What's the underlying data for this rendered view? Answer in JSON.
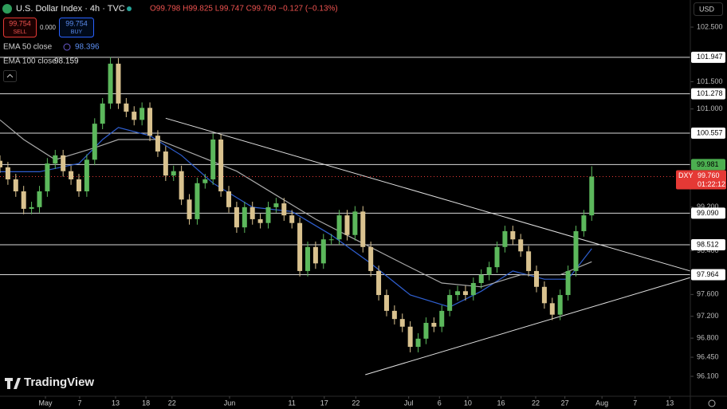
{
  "header": {
    "symbol": "U.S. Dollar Index · 4h · TVC",
    "ohlc": "O99.798 H99.825 L99.747 C99.760 −0.127 (−0.13%)",
    "sell_price": "99.754",
    "sell_label": "SELL",
    "spread": "0.000",
    "buy_price": "99.754",
    "buy_label": "BUY",
    "currency": "USD",
    "logo": "TradingView"
  },
  "chart_data": {
    "type": "candlestick",
    "open": [
      100.05,
      99.93,
      99.71,
      99.49,
      99.17,
      99.2,
      99.49,
      100.0,
      100.15,
      99.86,
      99.71,
      99.49,
      100.07,
      100.73,
      101.1,
      101.83,
      101.1,
      100.95,
      100.8,
      101.02,
      100.51,
      100.22,
      99.78,
      99.86,
      99.34,
      98.98,
      99.64,
      99.71,
      100.44,
      99.49,
      99.2,
      98.83,
      99.2,
      98.98,
      98.91,
      99.2,
      99.27,
      99.05,
      98.91,
      98.03,
      98.47,
      98.17,
      98.61,
      98.61,
      99.05,
      98.69,
      99.12,
      98.47,
      98.03,
      97.59,
      97.3,
      97.15,
      97.01,
      96.64,
      96.79,
      97.08,
      97.01,
      97.3,
      97.59,
      97.66,
      97.59,
      97.81,
      97.96,
      98.1,
      98.47,
      98.76,
      98.61,
      98.39,
      98.03,
      97.74,
      97.44,
      97.23,
      97.59,
      98.03,
      98.76,
      99.05
    ],
    "high": [
      100.15,
      100.03,
      99.81,
      99.59,
      99.3,
      99.59,
      100.1,
      100.25,
      100.25,
      99.96,
      99.81,
      100.17,
      100.83,
      101.2,
      101.95,
      101.93,
      101.2,
      101.05,
      101.12,
      101.12,
      100.61,
      100.32,
      99.96,
      99.96,
      99.44,
      99.74,
      99.81,
      100.55,
      100.54,
      99.59,
      99.3,
      99.3,
      99.3,
      99.08,
      99.3,
      99.37,
      99.37,
      99.15,
      99.01,
      98.57,
      98.57,
      98.71,
      98.71,
      99.15,
      99.15,
      99.22,
      99.22,
      98.57,
      98.13,
      97.69,
      97.4,
      97.25,
      97.11,
      96.89,
      97.18,
      97.18,
      97.4,
      97.69,
      97.76,
      97.76,
      97.91,
      98.06,
      98.2,
      98.57,
      98.86,
      98.86,
      98.71,
      98.49,
      98.13,
      97.84,
      97.54,
      97.69,
      98.13,
      98.86,
      99.15,
      99.95
    ],
    "low": [
      99.83,
      99.61,
      99.39,
      99.07,
      99.07,
      99.1,
      99.39,
      99.9,
      99.76,
      99.61,
      99.39,
      99.39,
      99.97,
      100.63,
      101.0,
      101.0,
      100.85,
      100.7,
      100.7,
      100.41,
      100.12,
      99.68,
      99.68,
      99.24,
      98.88,
      98.88,
      99.54,
      99.61,
      99.39,
      99.1,
      98.73,
      98.73,
      98.88,
      98.81,
      98.81,
      99.1,
      98.95,
      98.81,
      97.93,
      97.93,
      98.07,
      98.07,
      98.51,
      98.51,
      98.59,
      98.59,
      98.37,
      97.93,
      97.49,
      97.2,
      97.05,
      96.91,
      96.54,
      96.54,
      96.69,
      96.91,
      96.91,
      97.2,
      97.49,
      97.49,
      97.49,
      97.71,
      97.86,
      98.0,
      98.37,
      98.51,
      98.29,
      97.93,
      97.64,
      97.34,
      97.13,
      97.13,
      97.49,
      97.93,
      98.66,
      98.95
    ],
    "close": [
      99.93,
      99.71,
      99.49,
      99.17,
      99.2,
      99.49,
      100.0,
      100.15,
      99.86,
      99.71,
      99.49,
      100.07,
      100.73,
      101.1,
      101.83,
      101.1,
      100.95,
      100.8,
      101.02,
      100.51,
      100.22,
      99.78,
      99.86,
      99.34,
      98.98,
      99.64,
      99.71,
      100.44,
      99.49,
      99.2,
      98.83,
      99.2,
      98.98,
      98.91,
      99.2,
      99.27,
      99.05,
      98.91,
      98.03,
      98.47,
      98.17,
      98.61,
      98.61,
      99.05,
      98.69,
      99.12,
      98.47,
      98.03,
      97.59,
      97.3,
      97.15,
      97.01,
      96.64,
      96.79,
      97.08,
      97.01,
      97.3,
      97.59,
      97.66,
      97.59,
      97.81,
      97.96,
      98.1,
      98.47,
      98.76,
      98.61,
      98.39,
      98.03,
      97.74,
      97.44,
      97.23,
      97.59,
      98.03,
      98.76,
      99.05,
      99.76
    ],
    "up_color": "#5cb85c",
    "down_color": "#d9c28f",
    "series": [
      {
        "name": "EMA 50 close",
        "legend_value": "98.396",
        "color": "#2f5fd0",
        "x": [
          0,
          5,
          10,
          13,
          15,
          19,
          23,
          27,
          32,
          37,
          42,
          47,
          52,
          57,
          61,
          65,
          69,
          72,
          75
        ],
        "values": [
          99.85,
          99.85,
          100.0,
          100.44,
          100.66,
          100.51,
          100.15,
          99.64,
          99.2,
          99.12,
          98.69,
          98.17,
          97.59,
          97.37,
          97.66,
          98.03,
          97.88,
          97.88,
          98.44
        ]
      },
      {
        "name": "EMA 100 close",
        "legend_value": "98.159",
        "color": "#a8a8a8",
        "x": [
          0,
          3,
          7,
          12,
          15,
          20,
          25,
          30,
          35,
          40,
          45,
          51,
          56,
          61,
          66,
          71,
          75
        ],
        "values": [
          100.8,
          100.44,
          100.07,
          100.29,
          100.44,
          100.44,
          100.15,
          99.86,
          99.42,
          98.98,
          98.61,
          98.17,
          97.81,
          97.74,
          97.96,
          97.96,
          98.2
        ]
      }
    ],
    "levels": [
      {
        "value": 101.947,
        "label": "101.947",
        "color": "#ffffff"
      },
      {
        "value": 101.278,
        "label": "101.278",
        "color": "#ffffff"
      },
      {
        "value": 100.557,
        "label": "100.557",
        "color": "#ffffff"
      },
      {
        "value": 99.981,
        "label": "99.981",
        "color": "#4caf50"
      },
      {
        "value": 99.09,
        "label": "99.090",
        "color": "#ffffff"
      },
      {
        "value": 98.512,
        "label": "98.512",
        "color": "#ffffff"
      },
      {
        "value": 97.964,
        "label": "97.964",
        "color": "#ffffff"
      }
    ],
    "last": {
      "symbol": "DXY",
      "value": 99.76,
      "label": "99.760",
      "countdown": "01:22:12",
      "color": "#e53935"
    },
    "trendlines": [
      {
        "x": [
          21.0,
          87.5
        ],
        "y": [
          100.83,
          98.03
        ]
      },
      {
        "x": [
          46.3,
          87.5
        ],
        "y": [
          96.13,
          97.91
        ]
      }
    ],
    "xlim": [
      0,
      87.5
    ],
    "xticks": [
      {
        "value": 5.76,
        "label": "May"
      },
      {
        "value": 10.1,
        "label": "7"
      },
      {
        "value": 14.65,
        "label": "13"
      },
      {
        "value": 18.5,
        "label": "18"
      },
      {
        "value": 21.8,
        "label": "22"
      },
      {
        "value": 29.1,
        "label": "Jun"
      },
      {
        "value": 37.0,
        "label": "11"
      },
      {
        "value": 41.1,
        "label": "17"
      },
      {
        "value": 45.1,
        "label": "22"
      },
      {
        "value": 51.8,
        "label": "Jul"
      },
      {
        "value": 55.7,
        "label": "6"
      },
      {
        "value": 59.3,
        "label": "10"
      },
      {
        "value": 63.5,
        "label": "16"
      },
      {
        "value": 67.9,
        "label": "22"
      },
      {
        "value": 71.6,
        "label": "27"
      },
      {
        "value": 76.3,
        "label": "Aug"
      },
      {
        "value": 80.5,
        "label": "7"
      },
      {
        "value": 84.9,
        "label": "13"
      }
    ],
    "ylim": [
      95.735,
      102.997
    ],
    "yticks": [
      {
        "value": 102.5,
        "label": "102.500"
      },
      {
        "value": 101.5,
        "label": "101.500"
      },
      {
        "value": 101.0,
        "label": "101.000"
      },
      {
        "value": 99.2,
        "label": "99.200"
      },
      {
        "value": 98.4,
        "label": "98.400"
      },
      {
        "value": 97.6,
        "label": "97.600"
      },
      {
        "value": 97.2,
        "label": "97.200"
      },
      {
        "value": 96.8,
        "label": "96.800"
      },
      {
        "value": 96.45,
        "label": "96.450"
      },
      {
        "value": 96.1,
        "label": "96.100"
      }
    ]
  }
}
